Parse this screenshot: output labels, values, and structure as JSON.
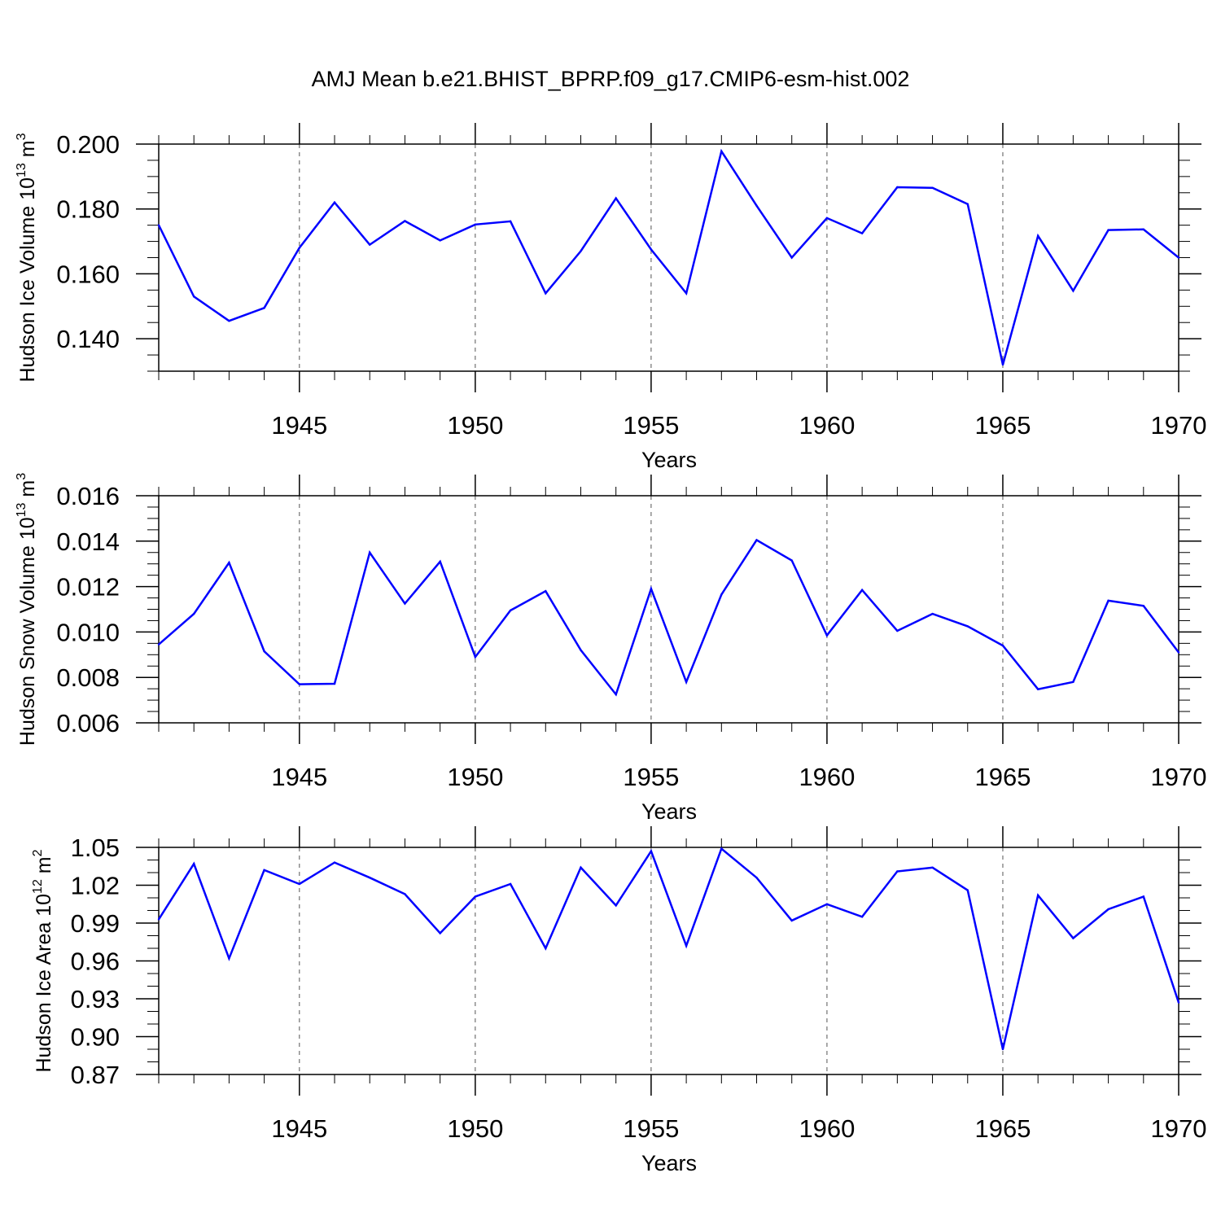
{
  "chart_data": [
    {
      "type": "line",
      "title": "AMJ Mean b.e21.BHIST_BPRP.f09_g17.CMIP6-esm-hist.002",
      "ylabel": {
        "main": "Hudson Ice Volume 10",
        "exp": "13",
        "unit": " m",
        "unit_exp": "3"
      },
      "xlabel": "Years",
      "xlim": [
        1941,
        1970
      ],
      "ylim": [
        0.13,
        0.2
      ],
      "yticks": [
        0.14,
        0.16,
        0.18,
        0.2
      ],
      "ytick_labels": [
        "0.140",
        "0.160",
        "0.180",
        "0.200"
      ],
      "yminor_step": 0.005,
      "xticks": [
        1945,
        1950,
        1955,
        1960,
        1965,
        1970
      ],
      "xtick_labels": [
        "1945",
        "1950",
        "1955",
        "1960",
        "1965",
        "1970"
      ],
      "gridlines": "vertical dashed at major x ticks",
      "line_color": "#0000ff",
      "x": [
        1941,
        1942,
        1943,
        1944,
        1945,
        1946,
        1947,
        1948,
        1949,
        1950,
        1951,
        1952,
        1953,
        1954,
        1955,
        1956,
        1957,
        1958,
        1959,
        1960,
        1961,
        1962,
        1963,
        1964,
        1965,
        1966,
        1967,
        1968,
        1969,
        1970
      ],
      "values": [
        0.175,
        0.153,
        0.1455,
        0.1495,
        0.168,
        0.182,
        0.169,
        0.1763,
        0.1703,
        0.1752,
        0.1762,
        0.154,
        0.167,
        0.1833,
        0.1675,
        0.154,
        0.1978,
        0.181,
        0.165,
        0.1772,
        0.1725,
        0.1867,
        0.1865,
        0.1815,
        0.132,
        0.1717,
        0.1548,
        0.1735,
        0.1737,
        0.165
      ]
    },
    {
      "type": "line",
      "ylabel": {
        "main": "Hudson Snow Volume 10",
        "exp": "13",
        "unit": " m",
        "unit_exp": "3"
      },
      "xlabel": "Years",
      "xlim": [
        1941,
        1970
      ],
      "ylim": [
        0.006,
        0.016
      ],
      "yticks": [
        0.006,
        0.008,
        0.01,
        0.012,
        0.014,
        0.016
      ],
      "ytick_labels": [
        "0.006",
        "0.008",
        "0.010",
        "0.012",
        "0.014",
        "0.016"
      ],
      "yminor_step": 0.0005,
      "xticks": [
        1945,
        1950,
        1955,
        1960,
        1965,
        1970
      ],
      "xtick_labels": [
        "1945",
        "1950",
        "1955",
        "1960",
        "1965",
        "1970"
      ],
      "gridlines": "vertical dashed at major x ticks",
      "line_color": "#0000ff",
      "x": [
        1941,
        1942,
        1943,
        1944,
        1945,
        1946,
        1947,
        1948,
        1949,
        1950,
        1951,
        1952,
        1953,
        1954,
        1955,
        1956,
        1957,
        1958,
        1959,
        1960,
        1961,
        1962,
        1963,
        1964,
        1965,
        1966,
        1967,
        1968,
        1969,
        1970
      ],
      "values": [
        0.00945,
        0.0108,
        0.01305,
        0.00915,
        0.0077,
        0.00772,
        0.0135,
        0.01125,
        0.0131,
        0.0089,
        0.01095,
        0.0118,
        0.0092,
        0.00725,
        0.0119,
        0.0078,
        0.01165,
        0.01405,
        0.01315,
        0.00985,
        0.01185,
        0.01005,
        0.0108,
        0.01025,
        0.0094,
        0.00748,
        0.0078,
        0.01138,
        0.01115,
        0.0091
      ]
    },
    {
      "type": "line",
      "ylabel": {
        "main": "Hudson Ice Area 10",
        "exp": "12",
        "unit": " m",
        "unit_exp": "2"
      },
      "xlabel": "Years",
      "xlim": [
        1941,
        1970
      ],
      "ylim": [
        0.87,
        1.05
      ],
      "yticks": [
        0.87,
        0.9,
        0.93,
        0.96,
        0.99,
        1.02,
        1.05
      ],
      "ytick_labels": [
        "0.87",
        "0.90",
        "0.93",
        "0.96",
        "0.99",
        "1.02",
        "1.05"
      ],
      "yminor_step": 0.01,
      "xticks": [
        1945,
        1950,
        1955,
        1960,
        1965,
        1970
      ],
      "xtick_labels": [
        "1945",
        "1950",
        "1955",
        "1960",
        "1965",
        "1970"
      ],
      "gridlines": "vertical dashed at major x ticks",
      "line_color": "#0000ff",
      "x": [
        1941,
        1942,
        1943,
        1944,
        1945,
        1946,
        1947,
        1948,
        1949,
        1950,
        1951,
        1952,
        1953,
        1954,
        1955,
        1956,
        1957,
        1958,
        1959,
        1960,
        1961,
        1962,
        1963,
        1964,
        1965,
        1966,
        1967,
        1968,
        1969,
        1970
      ],
      "values": [
        0.993,
        1.037,
        0.962,
        1.032,
        1.021,
        1.038,
        1.026,
        1.013,
        0.982,
        1.011,
        1.021,
        0.97,
        1.034,
        1.004,
        1.047,
        0.972,
        1.049,
        1.026,
        0.992,
        1.005,
        0.995,
        1.031,
        1.034,
        1.016,
        0.89,
        1.012,
        0.978,
        1.001,
        1.011,
        0.927
      ]
    }
  ]
}
